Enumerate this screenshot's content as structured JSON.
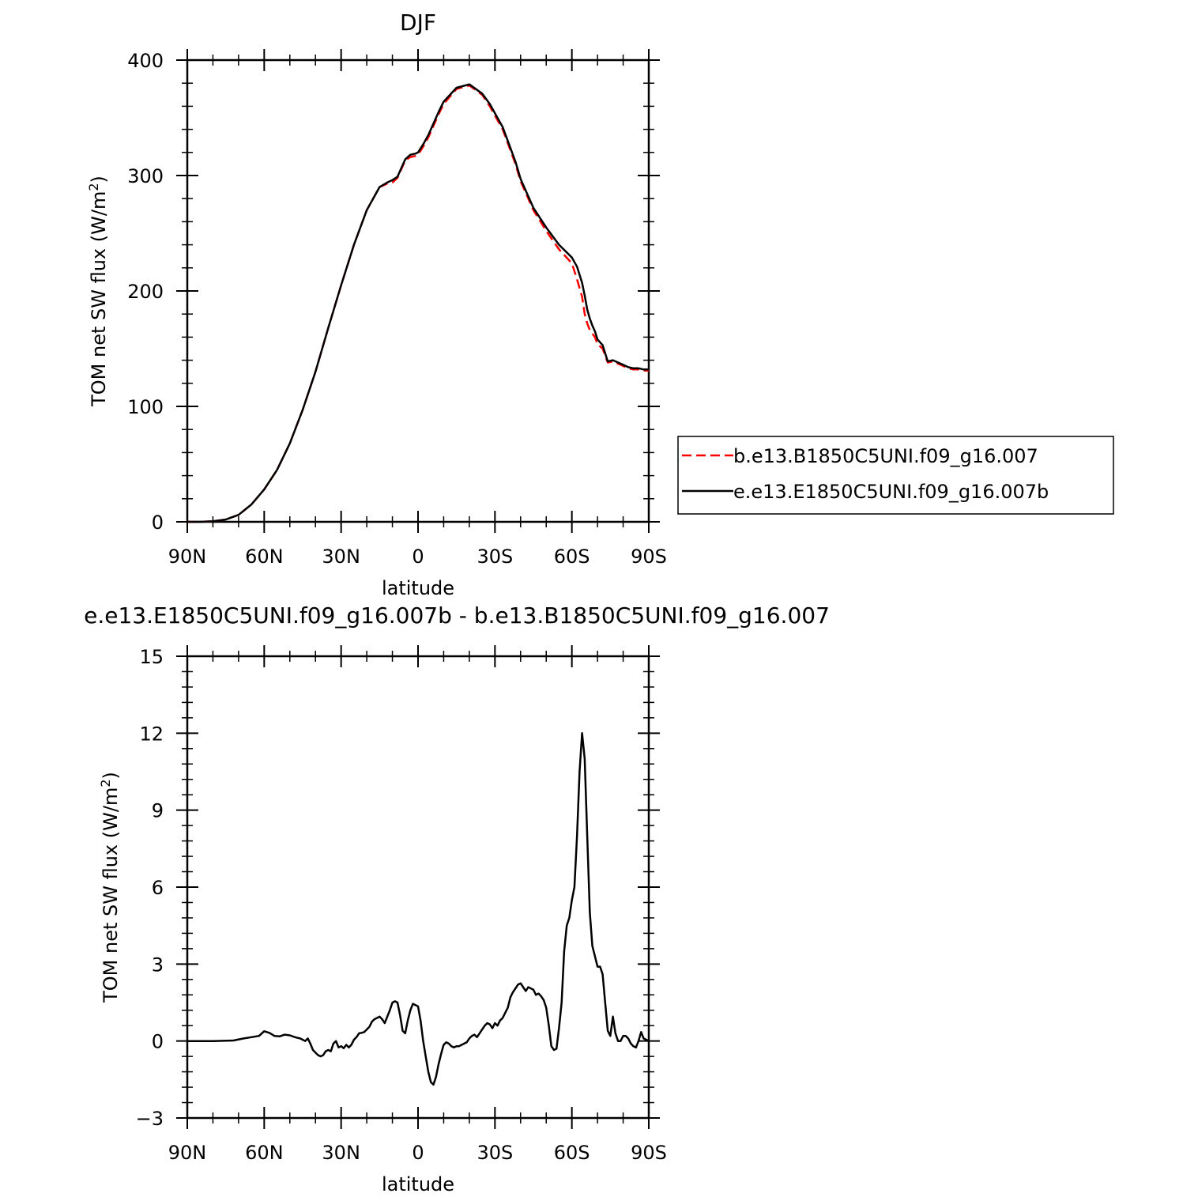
{
  "chart_data": [
    {
      "type": "line",
      "title": "DJF",
      "xlabel": "latitude",
      "ylabel": "TOM net SW flux (W/m²)",
      "ylabel_base": "TOM net SW flux (W/m",
      "ylabel_sup": "2",
      "ylabel_end": ")",
      "xlim": [
        -90,
        90
      ],
      "ylim": [
        0,
        400
      ],
      "xticks": [
        -90,
        -60,
        -30,
        0,
        30,
        60,
        90
      ],
      "xtick_labels": [
        "90N",
        "60N",
        "30N",
        "0",
        "30S",
        "60S",
        "90S"
      ],
      "yticks": [
        0,
        100,
        200,
        300,
        400
      ],
      "ytick_labels": [
        "0",
        "100",
        "200",
        "300",
        "400"
      ],
      "legend": "right",
      "series": [
        {
          "name": "b.e13.B1850C5UNI.f09_g16.007",
          "color": "#ff0000",
          "style": "dashed",
          "x": [
            -90,
            -85,
            -80,
            -75,
            -70,
            -65,
            -60,
            -55,
            -50,
            -45,
            -40,
            -35,
            -30,
            -25,
            -20,
            -15,
            -12,
            -10,
            -8,
            -6,
            -5,
            -3,
            -1,
            0,
            2,
            4,
            6,
            8,
            10,
            15,
            20,
            25,
            28,
            30,
            33,
            35,
            38,
            40,
            45,
            50,
            55,
            60,
            62,
            64,
            65,
            66,
            67,
            68,
            69,
            70,
            72,
            74,
            76,
            78,
            80,
            82,
            84,
            86,
            88,
            90
          ],
          "y": [
            0,
            0,
            0.5,
            2,
            6,
            15,
            28,
            45,
            68,
            97,
            130,
            168,
            205,
            240,
            270,
            290,
            293,
            294,
            298,
            308,
            313,
            316,
            317,
            318,
            325,
            333,
            343,
            353,
            362,
            375,
            378,
            370,
            360,
            352,
            340,
            328,
            310,
            295,
            270,
            252,
            236,
            224,
            210,
            195,
            180,
            172,
            166,
            163,
            160,
            154,
            150,
            138,
            139,
            137,
            135,
            133,
            132,
            132,
            131,
            131
          ]
        },
        {
          "name": "e.e13.E1850C5UNI.f09_g16.007b",
          "color": "#000000",
          "style": "solid",
          "x": [
            -90,
            -85,
            -80,
            -75,
            -70,
            -65,
            -60,
            -55,
            -50,
            -45,
            -40,
            -35,
            -30,
            -25,
            -20,
            -15,
            -12,
            -10,
            -8,
            -6,
            -5,
            -3,
            -1,
            0,
            2,
            4,
            6,
            8,
            10,
            15,
            20,
            25,
            28,
            30,
            33,
            35,
            38,
            40,
            45,
            50,
            55,
            60,
            62,
            64,
            65,
            66,
            67,
            68,
            69,
            70,
            72,
            74,
            76,
            78,
            80,
            82,
            84,
            86,
            88,
            90
          ],
          "y": [
            0,
            0,
            0.5,
            2,
            6,
            15,
            28,
            45,
            68,
            97,
            130,
            168,
            205,
            240,
            270,
            290,
            294,
            296,
            299,
            309,
            314,
            318,
            319,
            320,
            327,
            335,
            345,
            355,
            364,
            376,
            379,
            371,
            362,
            354,
            342,
            330,
            312,
            297,
            272,
            255,
            240,
            229,
            221,
            207,
            196,
            184,
            176,
            170,
            165,
            158,
            153,
            139,
            140,
            138,
            136,
            134,
            133,
            133,
            132,
            132
          ]
        }
      ]
    },
    {
      "type": "line",
      "title": "e.e13.E1850C5UNI.f09_g16.007b - b.e13.B1850C5UNI.f09_g16.007",
      "xlabel": "latitude",
      "ylabel": "TOM net SW flux (W/m²)",
      "ylabel_base": "TOM net SW flux (W/m",
      "ylabel_sup": "2",
      "ylabel_end": ")",
      "xlim": [
        -90,
        90
      ],
      "ylim": [
        -3,
        15
      ],
      "xticks": [
        -90,
        -60,
        -30,
        0,
        30,
        60,
        90
      ],
      "xtick_labels": [
        "90N",
        "60N",
        "30N",
        "0",
        "30S",
        "60S",
        "90S"
      ],
      "yticks": [
        -3,
        0,
        3,
        6,
        9,
        12,
        15
      ],
      "ytick_labels": [
        "−3",
        "0",
        "3",
        "6",
        "9",
        "12",
        "15"
      ],
      "series": [
        {
          "name": "",
          "color": "#000000",
          "style": "solid",
          "x": [
            -90,
            -80,
            -72,
            -68,
            -65,
            -62,
            -60,
            -58,
            -56,
            -54,
            -52,
            -50,
            -48,
            -46,
            -45,
            -44,
            -43,
            -42,
            -41,
            -40,
            -39,
            -38,
            -37,
            -36,
            -35,
            -34,
            -33,
            -32,
            -31,
            -30,
            -29,
            -28,
            -27,
            -26,
            -25,
            -24,
            -23,
            -22,
            -21,
            -20,
            -19,
            -18,
            -17,
            -16,
            -15,
            -14,
            -13,
            -12,
            -11,
            -10,
            -9,
            -8,
            -7,
            -6,
            -5,
            -4,
            -3,
            -2,
            -1,
            0,
            1,
            2,
            3,
            4,
            5,
            6,
            7,
            8,
            9,
            10,
            11,
            12,
            13,
            14,
            15,
            16,
            17,
            18,
            19,
            20,
            21,
            22,
            23,
            24,
            25,
            26,
            27,
            28,
            29,
            30,
            31,
            32,
            33,
            34,
            35,
            36,
            37,
            38,
            39,
            40,
            41,
            42,
            43,
            44,
            45,
            46,
            47,
            48,
            49,
            50,
            51,
            52,
            53,
            54,
            55,
            56,
            57,
            58,
            59,
            60,
            61,
            62,
            63,
            64,
            65,
            66,
            67,
            68,
            69,
            70,
            71,
            72,
            73,
            74,
            75,
            76,
            77,
            78,
            79,
            80,
            81,
            82,
            83,
            84,
            85,
            86,
            87,
            88,
            89,
            90
          ],
          "y": [
            0,
            0,
            0.02,
            0.1,
            0.15,
            0.2,
            0.38,
            0.32,
            0.2,
            0.18,
            0.25,
            0.22,
            0.15,
            0.1,
            0.05,
            0,
            0.1,
            -0.1,
            -0.35,
            -0.45,
            -0.55,
            -0.6,
            -0.55,
            -0.4,
            -0.35,
            -0.4,
            -0.1,
            0,
            -0.25,
            -0.2,
            -0.28,
            -0.15,
            -0.25,
            -0.15,
            0.05,
            0.15,
            0.3,
            0.32,
            0.35,
            0.45,
            0.55,
            0.75,
            0.85,
            0.9,
            0.95,
            0.85,
            0.7,
            0.95,
            1.2,
            1.5,
            1.55,
            1.5,
            1,
            0.4,
            0.3,
            0.8,
            1.2,
            1.45,
            1.4,
            1.35,
            0.8,
            0,
            -0.6,
            -1.2,
            -1.6,
            -1.7,
            -1.4,
            -0.9,
            -0.5,
            -0.15,
            -0.05,
            -0.1,
            -0.2,
            -0.25,
            -0.2,
            -0.2,
            -0.15,
            -0.1,
            -0.05,
            0.1,
            0.2,
            0.25,
            0.15,
            0.3,
            0.45,
            0.6,
            0.7,
            0.65,
            0.5,
            0.7,
            0.6,
            0.8,
            0.9,
            1.1,
            1.3,
            1.7,
            1.9,
            2.05,
            2.2,
            2.25,
            2.1,
            1.95,
            2.1,
            2.05,
            2,
            1.8,
            1.85,
            1.75,
            1.6,
            1.3,
            0.6,
            -0.2,
            -0.35,
            -0.3,
            0.5,
            1.5,
            3.5,
            4.5,
            4.8,
            5.5,
            6,
            8,
            10.5,
            12,
            11,
            8,
            5,
            3.7,
            3.3,
            2.9,
            2.9,
            2.6,
            1.5,
            0.4,
            0.2,
            0.95,
            0.3,
            0,
            0,
            0.2,
            0.2,
            0.1,
            -0.1,
            -0.2,
            -0.25,
            0,
            0.35,
            0.1,
            0.05,
            0
          ]
        }
      ]
    }
  ]
}
